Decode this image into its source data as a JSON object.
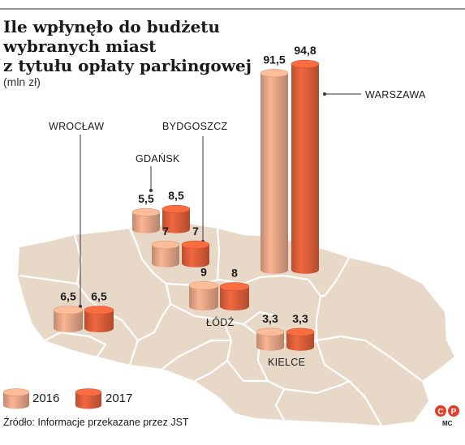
{
  "title_lines": [
    "Ile wpłynęło do budżetu",
    "wybranych miast",
    "z tytułu opłaty parkingowej"
  ],
  "unit": "(mln zł)",
  "legend": {
    "y2016": "2016",
    "y2017": "2017"
  },
  "source": "Źródło: Informacje przekazane przez JST",
  "author": "MC",
  "logo": "CP",
  "colors": {
    "c2016": "#e8a888",
    "c2017": "#e0603a",
    "map": "#e8d8c8",
    "border": "#ffffff",
    "lead": "#333333"
  },
  "chart_data": {
    "type": "bar",
    "title": "Ile wpłynęło do budżetu wybranych miast z tytułu opłaty parkingowej",
    "unit": "(mln zł)",
    "categories": [
      "Warszawa",
      "Gdańsk",
      "Bydgoszcz",
      "Łódź",
      "Wrocław",
      "Kielce"
    ],
    "series": [
      {
        "name": "2016",
        "values": [
          91.5,
          5.5,
          7,
          9,
          6.5,
          3.3
        ]
      },
      {
        "name": "2017",
        "values": [
          94.8,
          8.5,
          7,
          8,
          6.5,
          3.3
        ]
      }
    ],
    "value_labels": {
      "2016": [
        "91,5",
        "5,5",
        "7",
        "9",
        "6,5",
        "3,3"
      ],
      "2017": [
        "94,8",
        "8,5",
        "7",
        "8",
        "6,5",
        "3,3"
      ]
    },
    "city_labels": [
      "WARSZAWA",
      "GDAŃSK",
      "BYDGOSZCZ",
      "ŁÓDŹ",
      "WROCŁAW",
      "KIELCE"
    ]
  }
}
